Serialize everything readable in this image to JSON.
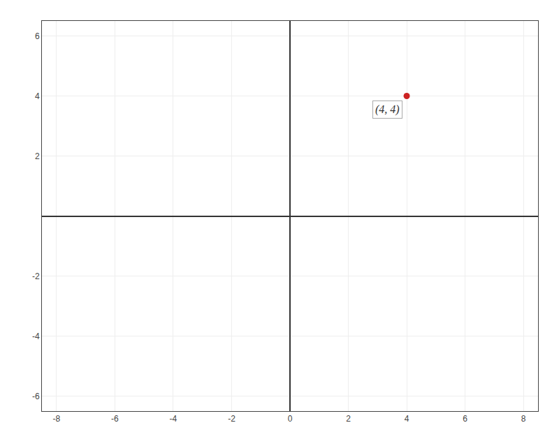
{
  "chart_data": {
    "type": "scatter",
    "x": [
      4
    ],
    "values": [
      4
    ],
    "color": "#cc2222",
    "annotations": [
      {
        "text": "(4, 4)",
        "x": 4,
        "y": 4
      }
    ],
    "xlim": [
      -8.5,
      8.5
    ],
    "ylim": [
      -6.5,
      6.5
    ],
    "xticks": [
      -8,
      -6,
      -4,
      -2,
      0,
      2,
      4,
      6,
      8
    ],
    "yticks": [
      -6,
      -4,
      -2,
      2,
      4,
      6
    ],
    "grid": true
  }
}
